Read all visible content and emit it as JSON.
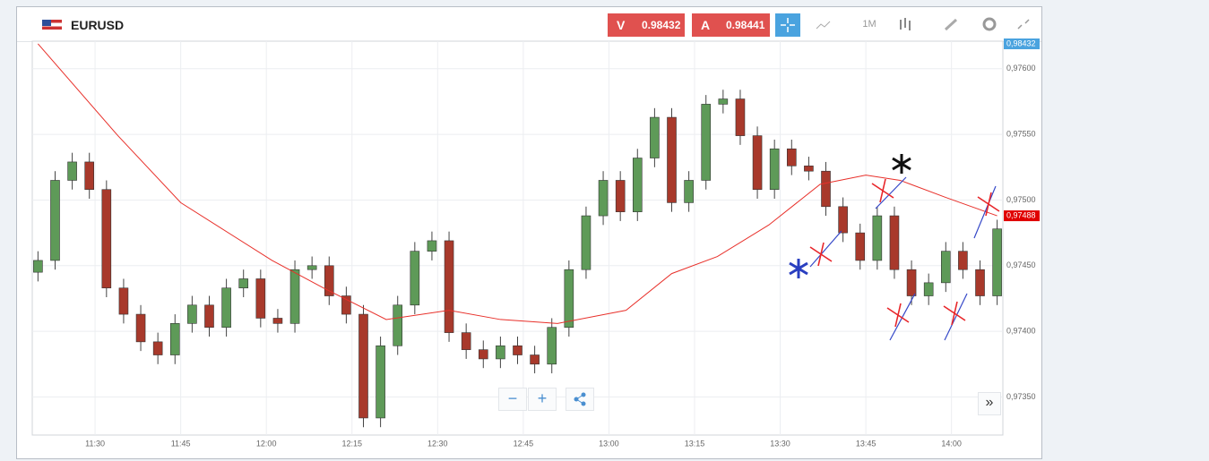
{
  "toolbar": {
    "symbol": "EURUSD",
    "sell_label": "V",
    "sell_price": "0.98432",
    "buy_label": "A",
    "buy_price": "0.98441",
    "timeframe": "1M"
  },
  "zoom": {
    "minus": "−",
    "plus": "+",
    "more": "»"
  },
  "chart_data": {
    "type": "candlestick",
    "x": [
      "11:20",
      "11:23",
      "11:26",
      "11:29",
      "11:32",
      "11:35",
      "11:38",
      "11:41",
      "11:44",
      "11:47",
      "11:50",
      "11:53",
      "11:56",
      "11:59",
      "12:02",
      "12:05",
      "12:08",
      "12:11",
      "12:14",
      "12:17",
      "12:20",
      "12:23",
      "12:26",
      "12:29",
      "12:32",
      "12:35",
      "12:38",
      "12:41",
      "12:44",
      "12:47",
      "12:50",
      "12:53",
      "12:56",
      "12:59",
      "13:02",
      "13:05",
      "13:08",
      "13:11",
      "13:14",
      "13:17",
      "13:20",
      "13:23",
      "13:26",
      "13:29",
      "13:32",
      "13:35",
      "13:38",
      "13:41",
      "13:44",
      "13:47",
      "13:50",
      "13:53",
      "13:56",
      "13:59",
      "14:02",
      "14:05",
      "14:08"
    ],
    "open": [
      0.97445,
      0.97454,
      0.97515,
      0.97529,
      0.97508,
      0.97433,
      0.97413,
      0.97392,
      0.97382,
      0.97406,
      0.9742,
      0.97403,
      0.97433,
      0.9744,
      0.9741,
      0.97406,
      0.97447,
      0.9745,
      0.97427,
      0.97413,
      0.97334,
      0.97389,
      0.9742,
      0.97461,
      0.97469,
      0.97399,
      0.97386,
      0.97379,
      0.97389,
      0.97382,
      0.97375,
      0.97403,
      0.97447,
      0.97488,
      0.97515,
      0.97491,
      0.97532,
      0.97563,
      0.97498,
      0.97515,
      0.97573,
      0.97577,
      0.97549,
      0.97508,
      0.97539,
      0.97526,
      0.97522,
      0.97495,
      0.97475,
      0.97454,
      0.97488,
      0.97447,
      0.97427,
      0.97437,
      0.97461,
      0.97447,
      0.97427
    ],
    "high": [
      0.97461,
      0.97522,
      0.97536,
      0.97536,
      0.97515,
      0.9744,
      0.9742,
      0.97399,
      0.97413,
      0.97427,
      0.97427,
      0.9744,
      0.97447,
      0.97447,
      0.97417,
      0.97454,
      0.97457,
      0.97457,
      0.97434,
      0.9742,
      0.97396,
      0.97427,
      0.97468,
      0.97476,
      0.97476,
      0.97406,
      0.97393,
      0.97396,
      0.97396,
      0.97389,
      0.9741,
      0.97454,
      0.97495,
      0.97522,
      0.97522,
      0.97539,
      0.9757,
      0.9757,
      0.97522,
      0.9758,
      0.97584,
      0.97584,
      0.97556,
      0.97546,
      0.97546,
      0.97533,
      0.97529,
      0.97502,
      0.97482,
      0.97495,
      0.97495,
      0.97454,
      0.97444,
      0.97468,
      0.97468,
      0.97454,
      0.97485
    ],
    "low": [
      0.97438,
      0.97447,
      0.97508,
      0.97501,
      0.97426,
      0.97406,
      0.97385,
      0.97375,
      0.97375,
      0.97399,
      0.97396,
      0.97396,
      0.97426,
      0.97403,
      0.97399,
      0.97399,
      0.9744,
      0.9742,
      0.97406,
      0.97327,
      0.97327,
      0.97382,
      0.97413,
      0.97454,
      0.97392,
      0.97379,
      0.97372,
      0.97372,
      0.97375,
      0.97368,
      0.97368,
      0.97396,
      0.9744,
      0.97481,
      0.97484,
      0.97484,
      0.97525,
      0.97491,
      0.97491,
      0.97508,
      0.97566,
      0.97542,
      0.97501,
      0.97501,
      0.97519,
      0.97515,
      0.97488,
      0.97468,
      0.97447,
      0.97447,
      0.9744,
      0.9742,
      0.9742,
      0.9743,
      0.9744,
      0.9742,
      0.9742
    ],
    "close": [
      0.97454,
      0.97515,
      0.97529,
      0.97508,
      0.97433,
      0.97413,
      0.97392,
      0.97382,
      0.97406,
      0.9742,
      0.97403,
      0.97433,
      0.9744,
      0.9741,
      0.97406,
      0.97447,
      0.9745,
      0.97427,
      0.97413,
      0.97334,
      0.97389,
      0.9742,
      0.97461,
      0.97469,
      0.97399,
      0.97386,
      0.97379,
      0.97389,
      0.97382,
      0.97375,
      0.97403,
      0.97447,
      0.97488,
      0.97515,
      0.97491,
      0.97532,
      0.97563,
      0.97498,
      0.97515,
      0.97573,
      0.97577,
      0.97549,
      0.97508,
      0.97539,
      0.97526,
      0.97522,
      0.97495,
      0.97475,
      0.97454,
      0.97488,
      0.97447,
      0.97427,
      0.97437,
      0.97461,
      0.97447,
      0.97427,
      0.97478
    ],
    "up_color": "#5e9a58",
    "down_color": "#a8392b",
    "moving_average": {
      "color": "#e8302a",
      "x": [
        "11:20",
        "11:34",
        "11:45",
        "12:01",
        "12:10",
        "12:21",
        "12:32",
        "12:41",
        "12:51",
        "13:03",
        "13:11",
        "13:19",
        "13:28",
        "13:37",
        "13:45",
        "13:51",
        "13:59",
        "14:08"
      ],
      "values": [
        0.97619,
        0.97549,
        0.97498,
        0.97454,
        0.97433,
        0.97409,
        0.97416,
        0.97409,
        0.97406,
        0.97416,
        0.97444,
        0.97457,
        0.97481,
        0.97512,
        0.97519,
        0.97515,
        0.97502,
        0.97488
      ]
    },
    "xlim": [
      "11:19",
      "14:09"
    ],
    "xticks": [
      "11:30",
      "11:45",
      "12:00",
      "12:15",
      "12:30",
      "12:45",
      "13:00",
      "13:15",
      "13:30",
      "13:45",
      "14:00"
    ],
    "ylim": [
      0.97321,
      0.97621
    ],
    "yticks": [
      {
        "value": 0.9735,
        "label": "0,97350"
      },
      {
        "value": 0.974,
        "label": "0,97400"
      },
      {
        "value": 0.9745,
        "label": "0,97450"
      },
      {
        "value": 0.975,
        "label": "0,97500"
      },
      {
        "value": 0.9755,
        "label": "0,97550"
      },
      {
        "value": 0.976,
        "label": "0,97600"
      }
    ],
    "grid": true,
    "ask_badge": "0,98432",
    "last_price": {
      "value": 0.97488,
      "label": "0,97488"
    }
  }
}
